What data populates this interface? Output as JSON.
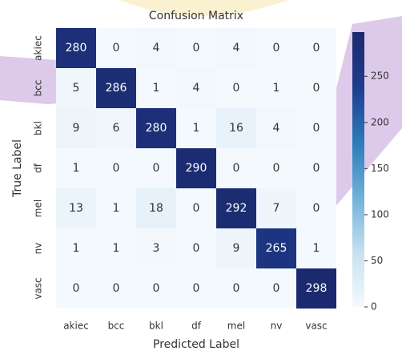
{
  "chart_data": {
    "type": "heatmap",
    "title": "Confusion Matrix",
    "x_label": "Predicted Label",
    "y_label": "True Label",
    "x_categories": [
      "akiec",
      "bcc",
      "bkl",
      "df",
      "mel",
      "nv",
      "vasc"
    ],
    "y_categories": [
      "akiec",
      "bcc",
      "bkl",
      "df",
      "mel",
      "nv",
      "vasc"
    ],
    "z": [
      [
        280,
        0,
        4,
        0,
        4,
        0,
        0
      ],
      [
        5,
        286,
        1,
        4,
        0,
        1,
        0
      ],
      [
        9,
        6,
        280,
        1,
        16,
        4,
        0
      ],
      [
        1,
        0,
        0,
        290,
        0,
        0,
        0
      ],
      [
        13,
        1,
        18,
        0,
        292,
        7,
        0
      ],
      [
        1,
        1,
        3,
        0,
        9,
        265,
        1
      ],
      [
        0,
        0,
        0,
        0,
        0,
        0,
        298
      ]
    ],
    "colormap": [
      "#f4f9fd",
      "#c6e0f0",
      "#6fb0d8",
      "#2b7bba",
      "#1f3c8e",
      "#1b2a6e"
    ],
    "zlim": [
      0,
      298
    ],
    "colorbar_ticks": [
      0,
      50,
      100,
      150,
      200,
      250
    ]
  }
}
